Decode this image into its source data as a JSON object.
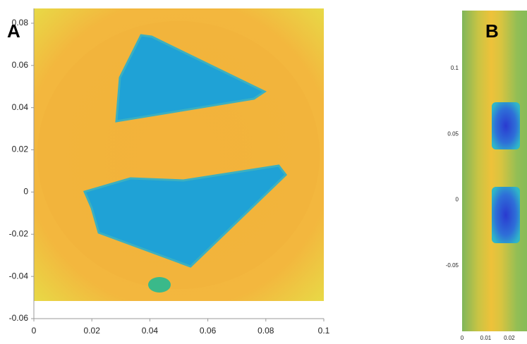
{
  "chart_data": [
    {
      "type": "heatmap",
      "panel_label": "A",
      "xlim": [
        0,
        0.1
      ],
      "ylim": [
        -0.06,
        0.087
      ],
      "xticks": [
        0,
        0.02,
        0.04,
        0.06,
        0.08,
        0.1
      ],
      "yticks": [
        -0.06,
        -0.04,
        -0.02,
        0,
        0.02,
        0.04,
        0.06,
        0.08
      ]
    },
    {
      "type": "heatmap",
      "panel_label": "B",
      "xlim": [
        0,
        0.0275
      ],
      "ylim": [
        -0.1,
        0.144
      ],
      "xticks": [
        0,
        0.01,
        0.02
      ],
      "yticks": [
        -0.05,
        0,
        0.05,
        0.1
      ]
    }
  ]
}
